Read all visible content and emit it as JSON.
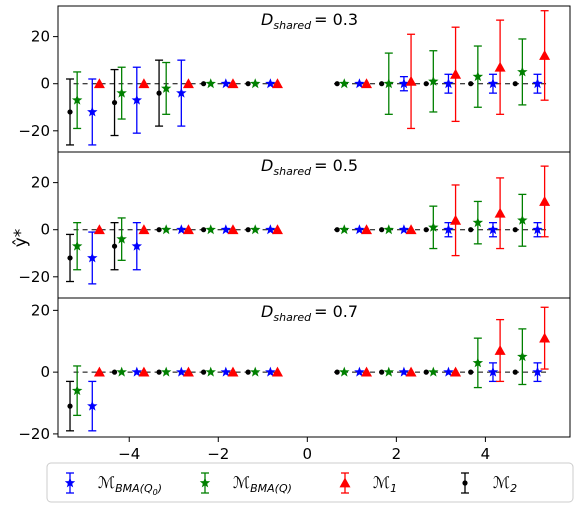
{
  "chart_data": {
    "type": "scatter",
    "ylabel": "ŷ*",
    "xlim": [
      -5.6,
      5.9
    ],
    "ylim": [
      -22,
      33
    ],
    "panel_ylims": [
      [
        -29,
        33
      ],
      [
        -29,
        33
      ],
      [
        -21,
        24
      ]
    ],
    "x_ticks": [
      -4,
      -2,
      0,
      2,
      4
    ],
    "x_tick_labels": [
      "−4",
      "−2",
      "0",
      "2",
      "4"
    ],
    "panels": [
      {
        "title_symbol": "D",
        "title_sub": "shared",
        "title_value": "= 0.3",
        "y_ticks": [
          -20,
          0,
          20
        ],
        "y_tick_labels": [
          "−20",
          "0",
          "20"
        ],
        "groups": [
          {
            "x": -5.0,
            "m2": [
              -12,
              14
            ],
            "bq": [
              -7,
              12
            ],
            "bq0": [
              -12,
              14
            ],
            "m1": [
              0,
              0
            ]
          },
          {
            "x": -4.0,
            "m2": [
              -8,
              14
            ],
            "bq": [
              -4,
              11
            ],
            "bq0": [
              -7,
              14
            ],
            "m1": [
              0,
              0
            ]
          },
          {
            "x": -3.0,
            "m2": [
              -4,
              14
            ],
            "bq": [
              -2,
              11
            ],
            "bq0": [
              -4,
              14
            ],
            "m1": [
              0,
              0
            ]
          },
          {
            "x": -2.0,
            "m2": [
              0,
              0
            ],
            "bq": [
              0,
              0
            ],
            "bq0": [
              0,
              0
            ],
            "m1": [
              0,
              0
            ]
          },
          {
            "x": -1.0,
            "m2": [
              0,
              0
            ],
            "bq": [
              0,
              0
            ],
            "bq0": [
              0,
              0
            ],
            "m1": [
              0,
              0
            ]
          },
          {
            "x": 1.0,
            "m2": [
              0,
              0
            ],
            "bq": [
              0,
              0
            ],
            "bq0": [
              0,
              0
            ],
            "m1": [
              0,
              0
            ]
          },
          {
            "x": 2.0,
            "m2": [
              0,
              0
            ],
            "bq": [
              0,
              13
            ],
            "bq0": [
              0,
              3
            ],
            "m1": [
              1,
              20
            ]
          },
          {
            "x": 3.0,
            "m2": [
              0,
              0
            ],
            "bq": [
              1,
              13
            ],
            "bq0": [
              0,
              4
            ],
            "m1": [
              4,
              20
            ]
          },
          {
            "x": 4.0,
            "m2": [
              0,
              0
            ],
            "bq": [
              3,
              13
            ],
            "bq0": [
              0,
              4
            ],
            "m1": [
              7,
              20
            ]
          },
          {
            "x": 5.0,
            "m2": [
              0,
              0
            ],
            "bq": [
              5,
              14
            ],
            "bq0": [
              0,
              4
            ],
            "m1": [
              12,
              19
            ]
          }
        ]
      },
      {
        "title_symbol": "D",
        "title_sub": "shared",
        "title_value": "= 0.5",
        "y_ticks": [
          -20,
          0,
          20
        ],
        "y_tick_labels": [
          "−20",
          "0",
          "20"
        ],
        "groups": [
          {
            "x": -5.0,
            "m2": [
              -12,
              10
            ],
            "bq": [
              -7,
              10
            ],
            "bq0": [
              -12,
              11
            ],
            "m1": [
              0,
              0
            ]
          },
          {
            "x": -4.0,
            "m2": [
              -7,
              10
            ],
            "bq": [
              -4,
              9
            ],
            "bq0": [
              -7,
              10
            ],
            "m1": [
              0,
              0
            ]
          },
          {
            "x": -3.0,
            "m2": [
              0,
              0
            ],
            "bq": [
              0,
              0
            ],
            "bq0": [
              0,
              0
            ],
            "m1": [
              0,
              0
            ]
          },
          {
            "x": -2.0,
            "m2": [
              0,
              0
            ],
            "bq": [
              0,
              0
            ],
            "bq0": [
              0,
              0
            ],
            "m1": [
              0,
              0
            ]
          },
          {
            "x": -1.0,
            "m2": [
              0,
              0
            ],
            "bq": [
              0,
              0
            ],
            "bq0": [
              0,
              0
            ],
            "m1": [
              0,
              0
            ]
          },
          {
            "x": 1.0,
            "m2": [
              0,
              0
            ],
            "bq": [
              0,
              0
            ],
            "bq0": [
              0,
              0
            ],
            "m1": [
              0,
              0
            ]
          },
          {
            "x": 2.0,
            "m2": [
              0,
              0
            ],
            "bq": [
              0,
              0
            ],
            "bq0": [
              0,
              0
            ],
            "m1": [
              0,
              0
            ]
          },
          {
            "x": 3.0,
            "m2": [
              0,
              0
            ],
            "bq": [
              1,
              9
            ],
            "bq0": [
              0,
              3
            ],
            "m1": [
              4,
              15
            ]
          },
          {
            "x": 4.0,
            "m2": [
              0,
              0
            ],
            "bq": [
              3,
              9
            ],
            "bq0": [
              0,
              3
            ],
            "m1": [
              7,
              15
            ]
          },
          {
            "x": 5.0,
            "m2": [
              0,
              0
            ],
            "bq": [
              4,
              11
            ],
            "bq0": [
              0,
              3
            ],
            "m1": [
              12,
              15
            ]
          }
        ]
      },
      {
        "title_symbol": "D",
        "title_sub": "shared",
        "title_value": "= 0.7",
        "y_ticks": [
          -20,
          0,
          20
        ],
        "y_tick_labels": [
          "−20",
          "0",
          "20"
        ],
        "groups": [
          {
            "x": -5.0,
            "m2": [
              -11,
              8
            ],
            "bq": [
              -6,
              8
            ],
            "bq0": [
              -11,
              8
            ],
            "m1": [
              0,
              0
            ]
          },
          {
            "x": -4.0,
            "m2": [
              0,
              0
            ],
            "bq": [
              0,
              0
            ],
            "bq0": [
              0,
              0
            ],
            "m1": [
              0,
              0
            ]
          },
          {
            "x": -3.0,
            "m2": [
              0,
              0
            ],
            "bq": [
              0,
              0
            ],
            "bq0": [
              0,
              0
            ],
            "m1": [
              0,
              0
            ]
          },
          {
            "x": -2.0,
            "m2": [
              0,
              0
            ],
            "bq": [
              0,
              0
            ],
            "bq0": [
              0,
              0
            ],
            "m1": [
              0,
              0
            ]
          },
          {
            "x": -1.0,
            "m2": [
              0,
              0
            ],
            "bq": [
              0,
              0
            ],
            "bq0": [
              0,
              0
            ],
            "m1": [
              0,
              0
            ]
          },
          {
            "x": 1.0,
            "m2": [
              0,
              0
            ],
            "bq": [
              0,
              0
            ],
            "bq0": [
              0,
              0
            ],
            "m1": [
              0,
              0
            ]
          },
          {
            "x": 2.0,
            "m2": [
              0,
              0
            ],
            "bq": [
              0,
              0
            ],
            "bq0": [
              0,
              0
            ],
            "m1": [
              0,
              0
            ]
          },
          {
            "x": 3.0,
            "m2": [
              0,
              0
            ],
            "bq": [
              0,
              0
            ],
            "bq0": [
              0,
              0
            ],
            "m1": [
              0,
              0
            ]
          },
          {
            "x": 4.0,
            "m2": [
              0,
              0
            ],
            "bq": [
              3,
              8
            ],
            "bq0": [
              0,
              3
            ],
            "m1": [
              7,
              10
            ]
          },
          {
            "x": 5.0,
            "m2": [
              0,
              0
            ],
            "bq": [
              5,
              9
            ],
            "bq0": [
              0,
              3
            ],
            "m1": [
              11,
              10
            ]
          }
        ]
      }
    ],
    "series": [
      {
        "key": "bq0",
        "legend_main": "ℳ",
        "legend_sub": "BMA(Q",
        "legend_subsub": "0",
        "legend_close": ")",
        "color": "#0000ff",
        "marker": "star",
        "dx": 0.17
      },
      {
        "key": "bq",
        "legend_main": "ℳ",
        "legend_sub": "BMA(Q)",
        "legend_subsub": "",
        "legend_close": "",
        "color": "#008000",
        "marker": "star",
        "dx": -0.17
      },
      {
        "key": "m1",
        "legend_main": "ℳ",
        "legend_sub": "1",
        "legend_subsub": "",
        "legend_close": "",
        "color": "#ff0000",
        "marker": "triangle",
        "dx": 0.33
      },
      {
        "key": "m2",
        "legend_main": "ℳ",
        "legend_sub": "2",
        "legend_subsub": "",
        "legend_close": "",
        "color": "#000000",
        "marker": "dot",
        "dx": -0.33
      }
    ],
    "legend_position": "bottom",
    "grid": false
  }
}
